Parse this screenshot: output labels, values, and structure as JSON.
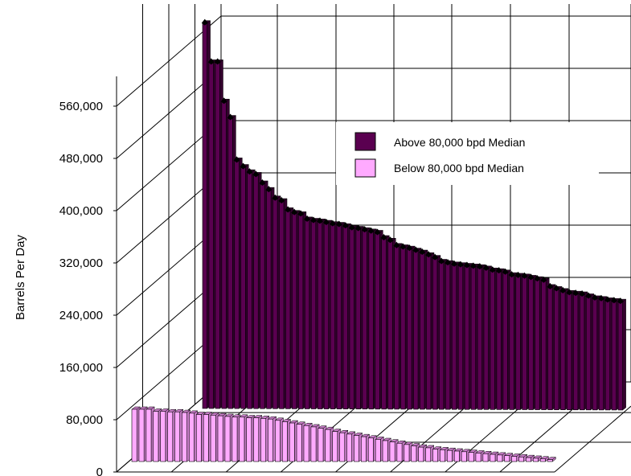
{
  "chart_data": {
    "type": "bar",
    "style": "3d-depth-bars",
    "ylabel": "Barrels Per Day",
    "xlabel": "",
    "title": "",
    "ylim": [
      0,
      640000
    ],
    "yticks": [
      0,
      80000,
      160000,
      240000,
      320000,
      400000,
      480000,
      560000
    ],
    "ytick_labels": [
      "0",
      "80,000",
      "160,000",
      "240,000",
      "320,000",
      "400,000",
      "480,000",
      "560,000"
    ],
    "grid": true,
    "legend_position": "top-right",
    "colors": {
      "above": "#5a0050",
      "above_dark": "#34002e",
      "below": "#ffaaff",
      "below_dark": "#c77cc7"
    },
    "series": [
      {
        "name": "Above 80,000 bpd Median",
        "row": "back",
        "values": [
          590000,
          530000,
          530000,
          470000,
          445000,
          380000,
          370000,
          362000,
          358000,
          345000,
          335000,
          322000,
          318000,
          304000,
          300000,
          298000,
          290000,
          288000,
          287000,
          285000,
          283000,
          282000,
          280000,
          277000,
          276000,
          274000,
          272000,
          270000,
          262000,
          258000,
          250000,
          248000,
          246000,
          243000,
          240000,
          236000,
          232000,
          226000,
          224000,
          222000,
          221000,
          220000,
          219000,
          218000,
          216000,
          213000,
          212000,
          210000,
          206000,
          205000,
          204000,
          202000,
          200000,
          198000,
          188000,
          185000,
          182000,
          179000,
          178000,
          177000,
          174000,
          171000,
          170000,
          168000,
          167000,
          166000
        ]
      },
      {
        "name": "Below 80,000 bpd Median",
        "row": "front",
        "values": [
          80000,
          80000,
          80000,
          77000,
          77000,
          76000,
          76000,
          75000,
          74000,
          72000,
          72000,
          71000,
          70000,
          69000,
          68000,
          68000,
          67000,
          67000,
          66000,
          65000,
          63000,
          61000,
          59000,
          57000,
          55000,
          53000,
          51000,
          49000,
          46000,
          44000,
          42000,
          40000,
          38000,
          36000,
          34000,
          32000,
          30000,
          28000,
          26000,
          24000,
          22000,
          21000,
          19000,
          18000,
          17000,
          16000,
          15000,
          14000,
          13000,
          12000,
          11000,
          10000,
          9000,
          8000,
          7000,
          6000,
          5000,
          4000,
          3000
        ]
      }
    ]
  }
}
